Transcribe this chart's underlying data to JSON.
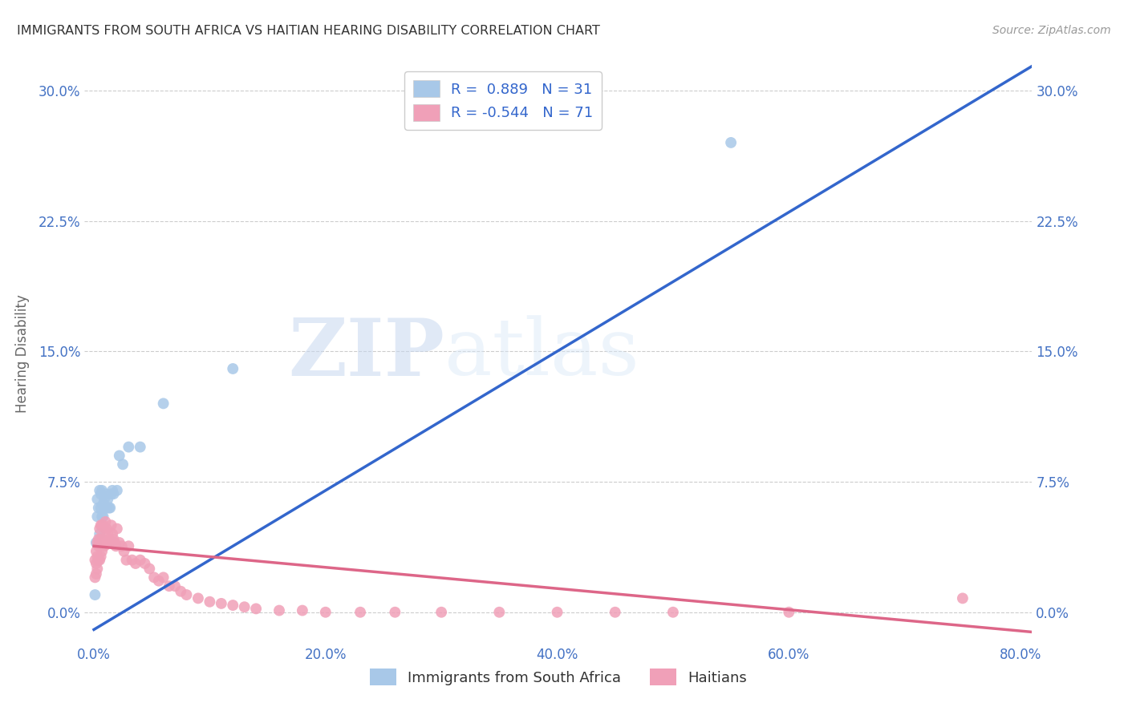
{
  "title": "IMMIGRANTS FROM SOUTH AFRICA VS HAITIAN HEARING DISABILITY CORRELATION CHART",
  "source": "Source: ZipAtlas.com",
  "xlabel_ticks": [
    "0.0%",
    "20.0%",
    "40.0%",
    "60.0%",
    "80.0%"
  ],
  "xlabel_tick_vals": [
    0.0,
    0.2,
    0.4,
    0.6,
    0.8
  ],
  "ylabel_ticks": [
    "0.0%",
    "7.5%",
    "15.0%",
    "22.5%",
    "30.0%"
  ],
  "ylabel_tick_vals": [
    0.0,
    0.075,
    0.15,
    0.225,
    0.3
  ],
  "ylabel": "Hearing Disability",
  "xlim": [
    -0.008,
    0.81
  ],
  "ylim": [
    -0.018,
    0.315
  ],
  "legend_blue_label": "Immigrants from South Africa",
  "legend_pink_label": "Haitians",
  "R_blue": 0.889,
  "N_blue": 31,
  "R_pink": -0.544,
  "N_pink": 71,
  "blue_color": "#a8c8e8",
  "blue_line_color": "#3366cc",
  "pink_color": "#f0a0b8",
  "pink_line_color": "#dd6688",
  "watermark_zip": "ZIP",
  "watermark_atlas": "atlas",
  "title_color": "#333333",
  "axis_label_color": "#4472c4",
  "blue_scatter_x": [
    0.001,
    0.002,
    0.003,
    0.003,
    0.004,
    0.005,
    0.005,
    0.006,
    0.006,
    0.007,
    0.007,
    0.008,
    0.008,
    0.009,
    0.009,
    0.01,
    0.011,
    0.012,
    0.013,
    0.014,
    0.015,
    0.016,
    0.017,
    0.02,
    0.022,
    0.025,
    0.03,
    0.04,
    0.06,
    0.12,
    0.55
  ],
  "blue_scatter_y": [
    0.01,
    0.04,
    0.055,
    0.065,
    0.06,
    0.045,
    0.07,
    0.06,
    0.068,
    0.055,
    0.07,
    0.055,
    0.062,
    0.06,
    0.065,
    0.068,
    0.06,
    0.065,
    0.06,
    0.06,
    0.068,
    0.07,
    0.068,
    0.07,
    0.09,
    0.085,
    0.095,
    0.095,
    0.12,
    0.14,
    0.27
  ],
  "pink_scatter_x": [
    0.001,
    0.001,
    0.002,
    0.002,
    0.002,
    0.003,
    0.003,
    0.003,
    0.004,
    0.004,
    0.004,
    0.005,
    0.005,
    0.005,
    0.006,
    0.006,
    0.006,
    0.007,
    0.007,
    0.007,
    0.008,
    0.008,
    0.009,
    0.009,
    0.01,
    0.01,
    0.011,
    0.012,
    0.013,
    0.014,
    0.015,
    0.016,
    0.017,
    0.018,
    0.019,
    0.02,
    0.022,
    0.024,
    0.026,
    0.028,
    0.03,
    0.033,
    0.036,
    0.04,
    0.044,
    0.048,
    0.052,
    0.056,
    0.06,
    0.065,
    0.07,
    0.075,
    0.08,
    0.09,
    0.1,
    0.11,
    0.12,
    0.13,
    0.14,
    0.16,
    0.18,
    0.2,
    0.23,
    0.26,
    0.3,
    0.35,
    0.4,
    0.45,
    0.5,
    0.6,
    0.75
  ],
  "pink_scatter_y": [
    0.03,
    0.02,
    0.035,
    0.028,
    0.022,
    0.04,
    0.032,
    0.025,
    0.042,
    0.038,
    0.03,
    0.048,
    0.04,
    0.03,
    0.05,
    0.042,
    0.032,
    0.05,
    0.042,
    0.035,
    0.05,
    0.04,
    0.048,
    0.038,
    0.052,
    0.04,
    0.048,
    0.045,
    0.042,
    0.04,
    0.05,
    0.045,
    0.042,
    0.04,
    0.038,
    0.048,
    0.04,
    0.038,
    0.035,
    0.03,
    0.038,
    0.03,
    0.028,
    0.03,
    0.028,
    0.025,
    0.02,
    0.018,
    0.02,
    0.015,
    0.015,
    0.012,
    0.01,
    0.008,
    0.006,
    0.005,
    0.004,
    0.003,
    0.002,
    0.001,
    0.001,
    0.0,
    0.0,
    0.0,
    0.0,
    0.0,
    0.0,
    0.0,
    0.0,
    0.0,
    0.008
  ],
  "blue_line_x0": 0.0,
  "blue_line_x1": 0.82,
  "blue_line_y0": -0.01,
  "blue_line_y1": 0.318,
  "pink_line_x0": 0.0,
  "pink_line_x1": 0.82,
  "pink_line_y0": 0.038,
  "pink_line_y1": -0.012
}
